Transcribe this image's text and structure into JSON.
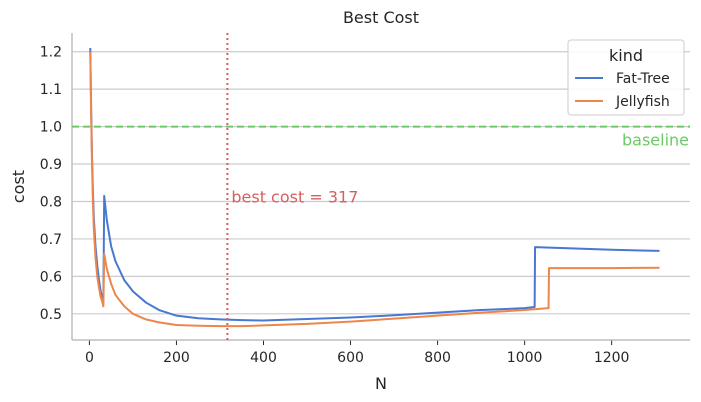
{
  "chart_data": {
    "type": "line",
    "title": "Best Cost",
    "xlabel": "N",
    "ylabel": "cost",
    "xlim": [
      -40,
      1380
    ],
    "ylim": [
      0.43,
      1.25
    ],
    "xticks": [
      0,
      200,
      400,
      600,
      800,
      1000,
      1200
    ],
    "yticks": [
      0.5,
      0.6,
      0.7,
      0.8,
      0.9,
      1.0,
      1.1,
      1.2
    ],
    "grid": "horizontal",
    "legend": {
      "title": "kind",
      "placement": "top-right"
    },
    "series": [
      {
        "name": "Fat-Tree",
        "color": "#4878d0",
        "x": [
          2,
          4,
          6,
          8,
          10,
          14,
          18,
          22,
          26,
          30,
          32,
          34,
          40,
          50,
          60,
          80,
          100,
          130,
          160,
          200,
          250,
          300,
          350,
          400,
          500,
          600,
          700,
          800,
          900,
          1000,
          1023,
          1024,
          1050,
          1100,
          1200,
          1310
        ],
        "y": [
          1.21,
          1.05,
          0.92,
          0.83,
          0.76,
          0.68,
          0.63,
          0.59,
          0.56,
          0.54,
          0.53,
          0.815,
          0.75,
          0.68,
          0.64,
          0.59,
          0.56,
          0.53,
          0.51,
          0.495,
          0.488,
          0.485,
          0.483,
          0.482,
          0.486,
          0.49,
          0.496,
          0.503,
          0.51,
          0.515,
          0.518,
          0.678,
          0.677,
          0.675,
          0.671,
          0.668
        ]
      },
      {
        "name": "Jellyfish",
        "color": "#ee854a",
        "x": [
          2,
          4,
          6,
          8,
          10,
          14,
          18,
          22,
          26,
          30,
          32,
          34,
          40,
          50,
          60,
          80,
          100,
          130,
          160,
          200,
          250,
          300,
          350,
          400,
          500,
          600,
          700,
          800,
          900,
          1000,
          1055,
          1056,
          1100,
          1200,
          1310
        ],
        "y": [
          1.2,
          1.03,
          0.9,
          0.8,
          0.73,
          0.65,
          0.6,
          0.57,
          0.545,
          0.53,
          0.52,
          0.66,
          0.62,
          0.58,
          0.55,
          0.52,
          0.5,
          0.485,
          0.477,
          0.47,
          0.468,
          0.467,
          0.467,
          0.469,
          0.473,
          0.479,
          0.487,
          0.495,
          0.503,
          0.51,
          0.515,
          0.622,
          0.622,
          0.622,
          0.623
        ]
      }
    ],
    "annotations": [
      {
        "kind": "hline",
        "y": 1.0,
        "color": "#6acc64",
        "style": "dashed",
        "label": "baseline"
      },
      {
        "kind": "vline",
        "x": 317,
        "color": "#d65f5f",
        "style": "dotted",
        "label": "best cost = 317"
      }
    ]
  }
}
